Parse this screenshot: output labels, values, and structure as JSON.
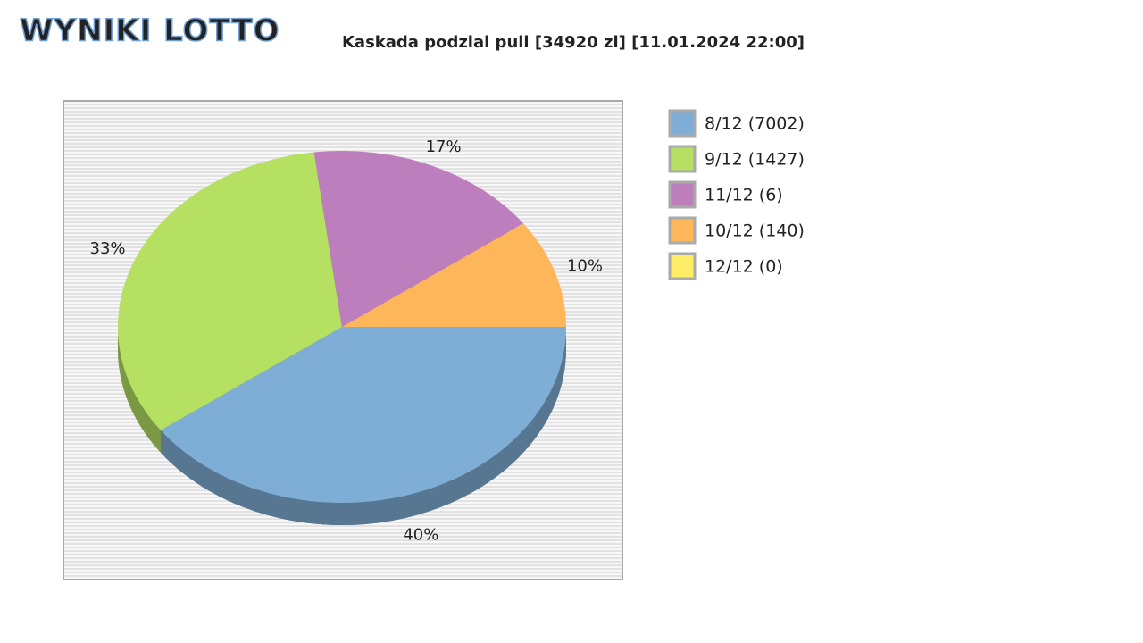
{
  "logo": "WYNIKI LOTTO",
  "chart_data": {
    "type": "pie",
    "title": "Kaskada podzial puli [34920 zl] [11.01.2024 22:00]",
    "categories": [
      "8/12 (7002)",
      "9/12 (1427)",
      "11/12 (6)",
      "10/12 (140)",
      "12/12 (0)"
    ],
    "values": [
      40,
      33,
      17,
      10,
      0
    ],
    "value_labels": [
      "40%",
      "33%",
      "17%",
      "10%",
      null
    ],
    "colors": [
      "#7eaed5",
      "#b5e061",
      "#bd7ebe",
      "#feb65a",
      "#ffee65"
    ],
    "legend": "right"
  }
}
